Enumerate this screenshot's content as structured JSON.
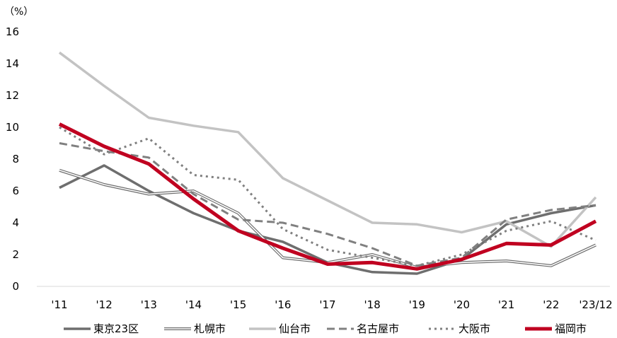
{
  "chart_data": {
    "type": "line",
    "ylabel": "（%）",
    "ylim": [
      0,
      16
    ],
    "yticks": [
      0,
      2,
      4,
      6,
      8,
      10,
      12,
      14,
      16
    ],
    "grid": false,
    "legend_position": "bottom",
    "categories": [
      "'11",
      "'12",
      "'13",
      "'14",
      "'15",
      "'16",
      "'17",
      "'18",
      "'19",
      "'20",
      "'21",
      "'22",
      "'23/12"
    ],
    "series": [
      {
        "name": "東京23区",
        "values": [
          6.2,
          7.6,
          6.0,
          4.6,
          3.5,
          2.8,
          1.5,
          0.9,
          0.8,
          1.7,
          3.9,
          4.6,
          5.1
        ],
        "color": "#6e6e6e",
        "style": "solid"
      },
      {
        "name": "札幌市",
        "values": [
          7.3,
          6.4,
          5.8,
          6.0,
          4.6,
          1.8,
          1.5,
          2.0,
          1.2,
          1.5,
          1.6,
          1.3,
          2.6
        ],
        "color": "#6e6e6e",
        "style": "double"
      },
      {
        "name": "仙台市",
        "values": [
          14.7,
          12.6,
          10.6,
          10.1,
          9.7,
          6.8,
          5.4,
          4.0,
          3.9,
          3.4,
          4.1,
          2.5,
          5.6
        ],
        "color": "#c3c3c3",
        "style": "solid"
      },
      {
        "name": "名古屋市",
        "values": [
          9.0,
          8.5,
          8.1,
          5.8,
          4.2,
          4.0,
          3.3,
          2.4,
          1.3,
          1.8,
          4.2,
          4.8,
          5.1
        ],
        "color": "#808080",
        "style": "dashed"
      },
      {
        "name": "大阪市",
        "values": [
          10.0,
          8.3,
          9.3,
          7.0,
          6.7,
          3.6,
          2.3,
          1.8,
          1.3,
          2.0,
          3.5,
          4.1,
          2.9
        ],
        "color": "#808080",
        "style": "dotted"
      },
      {
        "name": "福岡市",
        "values": [
          10.2,
          8.8,
          7.7,
          5.5,
          3.5,
          2.4,
          1.4,
          1.5,
          1.1,
          1.7,
          2.7,
          2.6,
          4.1
        ],
        "color": "#c00020",
        "style": "thick"
      }
    ]
  }
}
